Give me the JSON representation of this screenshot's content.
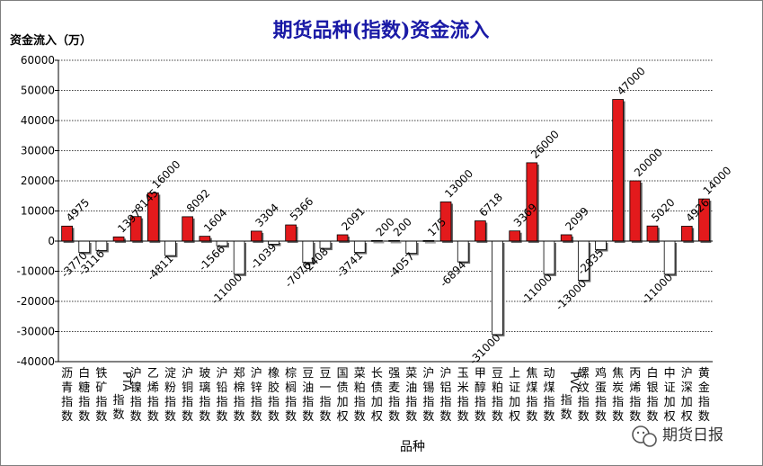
{
  "chart_data": {
    "type": "bar",
    "title": "期货品种(指数)资金流入",
    "ylabel": "资金流入（万）",
    "xlabel": "品种",
    "ylim": [
      -40000,
      60000
    ],
    "yticks": [
      60000,
      50000,
      40000,
      30000,
      20000,
      10000,
      0,
      -10000,
      -20000,
      -30000,
      -40000
    ],
    "grid": true,
    "colors": {
      "positive": "#e31a1c",
      "negative": "#ffffff",
      "axis": "#000000",
      "grid": "#000000",
      "title": "#1a1aa6"
    },
    "categories": [
      "沥青指数",
      "白糖指数",
      "铁矿指数",
      "PTA指数",
      "沪镍指数",
      "乙烯指数",
      "淀粉指数",
      "沪铜指数",
      "玻璃指数",
      "沪铅指数",
      "郑棉指数",
      "沪锌指数",
      "橡胶指数",
      "棕榈指数",
      "豆油指数",
      "豆一指数",
      "国债加权",
      "菜粕指数",
      "长债加权",
      "强麦指数",
      "菜油指数",
      "沪锡指数",
      "沪铝指数",
      "玉米指数",
      "甲醇指数",
      "豆粕指数",
      "上证加权",
      "焦煤指数",
      "动煤指数",
      "PVC指数",
      "螺纹指数",
      "鸡蛋指数",
      "焦炭指数",
      "丙烯指数",
      "白银指数",
      "中证加权",
      "沪深加权",
      "黄金指数"
    ],
    "values": [
      4975,
      -3770,
      -3116,
      1397,
      8145,
      16000,
      -4811,
      8092,
      1604,
      -1566,
      -11000,
      3304,
      -1039,
      5366,
      -7076,
      -2408,
      2091,
      -3741,
      200,
      200,
      -4057,
      175,
      13000,
      -6894,
      6718,
      -31000,
      3369,
      26000,
      -11000,
      2099,
      -13000,
      -2835,
      47000,
      20000,
      5020,
      -11000,
      4926,
      14000
    ],
    "data_labels": [
      "4975",
      "-3770",
      "-3116",
      "1397",
      "8145",
      "16000",
      "-4811",
      "8092",
      "1604",
      "-1566",
      "-11000",
      "3304",
      "-1039",
      "5366",
      "-7076",
      "-2408",
      "2091",
      "-3741",
      "200",
      "200",
      "-4057",
      "175",
      "13000",
      "-6894",
      "6718",
      "-31000",
      "3369",
      "26000",
      "-11000",
      "2099",
      "-13000",
      "-2835",
      "47000",
      "20000",
      "5020",
      "-11000",
      "4926",
      "14000"
    ]
  },
  "watermark": {
    "text": "期货日报",
    "icon": "wechat-icon"
  }
}
